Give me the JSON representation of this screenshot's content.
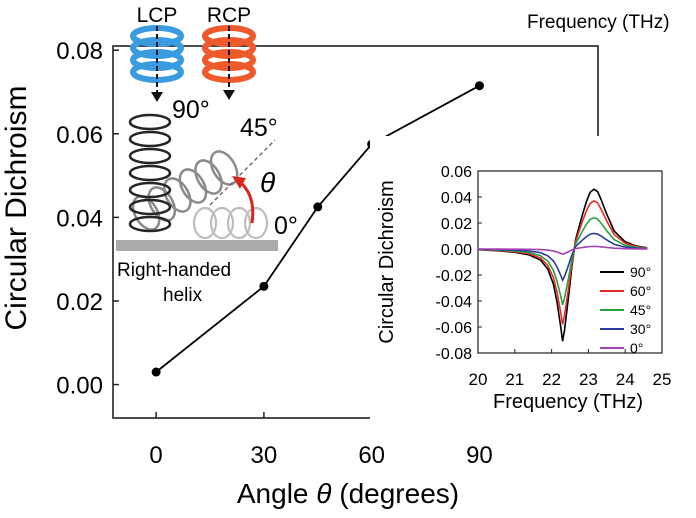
{
  "top_fragment": "Frequency (THz)",
  "chart_data": [
    {
      "type": "line",
      "xlabel_prefix": "Angle",
      "xlabel_symbol": "θ",
      "xlabel_suffix": "(degrees)",
      "ylabel": "Circular Dichroism",
      "xlim": [
        -12,
        123
      ],
      "ylim": [
        -0.008,
        0.081
      ],
      "x_ticks": [
        0,
        30,
        60,
        90
      ],
      "y_ticks": [
        "0.00",
        "0.02",
        "0.04",
        "0.06",
        "0.08"
      ],
      "x_tick_labels": [
        "0",
        "30",
        "60",
        "90"
      ],
      "grid": false,
      "series": [
        {
          "x": [
            0,
            30,
            45,
            60,
            90
          ],
          "y": [
            0.003,
            0.0235,
            0.0425,
            0.0575,
            0.0715
          ],
          "color": "#000000"
        }
      ],
      "annotations": {
        "lcp": "LCP",
        "rcp": "RCP",
        "angle_90": "90°",
        "angle_45": "45°",
        "theta": "θ",
        "angle_0": "0°",
        "helix_label_1": "Right-handed",
        "helix_label_2": "helix",
        "lcp_color": "#3a9be0",
        "rcp_color": "#ee5a2a",
        "arrow_color": "#d8281e"
      }
    },
    {
      "type": "line",
      "xlabel": "Frequency (THz)",
      "ylabel": "Circular Dichroism",
      "xlim": [
        20,
        25
      ],
      "ylim": [
        -0.08,
        0.06
      ],
      "x_ticks": [
        "20",
        "21",
        "22",
        "23",
        "24",
        "25"
      ],
      "y_ticks": [
        "-0.08",
        "-0.06",
        "-0.04",
        "-0.02",
        "0.00",
        "0.02",
        "0.04",
        "0.06"
      ],
      "legend_position": "bottom-right",
      "grid": false,
      "series": [
        {
          "name": "90°",
          "color": "#000000",
          "amp_neg": -0.071,
          "amp_pos": 0.046
        },
        {
          "name": "60°",
          "color": "#e8292b",
          "amp_neg": -0.058,
          "amp_pos": 0.037
        },
        {
          "name": "45°",
          "color": "#27a342",
          "amp_neg": -0.043,
          "amp_pos": 0.024
        },
        {
          "name": "30°",
          "color": "#2b3a9e",
          "amp_neg": -0.024,
          "amp_pos": 0.012
        },
        {
          "name": "0°",
          "color": "#a43fb5",
          "amp_neg": -0.004,
          "amp_pos": 0.002
        }
      ],
      "x": [
        20.0,
        20.5,
        21.0,
        21.4,
        21.7,
        21.9,
        22.05,
        22.15,
        22.25,
        22.3,
        22.35,
        22.45,
        22.55,
        22.65,
        22.75,
        22.85,
        22.95,
        23.05,
        23.15,
        23.25,
        23.35,
        23.5,
        23.7,
        24.0,
        24.3,
        24.6
      ],
      "shape": [
        -0.008,
        -0.018,
        -0.035,
        -0.065,
        -0.12,
        -0.22,
        -0.38,
        -0.58,
        -0.85,
        -1.0,
        -0.88,
        -0.55,
        -0.2,
        0.15,
        0.38,
        0.6,
        0.8,
        0.95,
        1.0,
        0.96,
        0.82,
        0.58,
        0.3,
        0.12,
        0.05,
        0.02
      ]
    }
  ]
}
